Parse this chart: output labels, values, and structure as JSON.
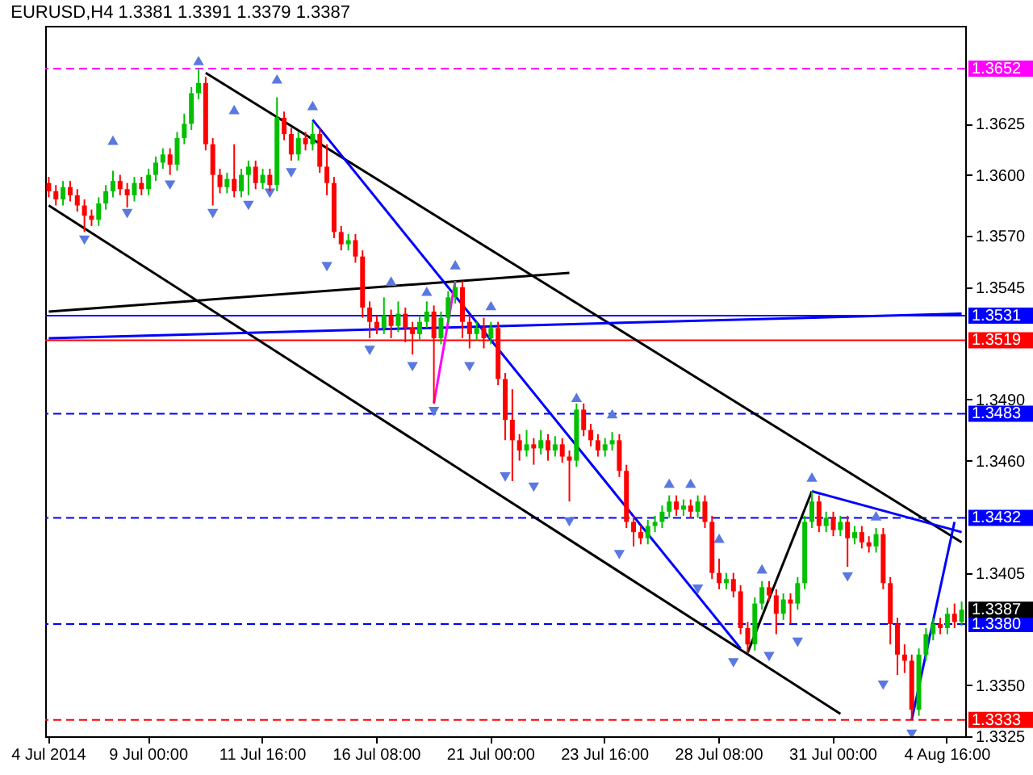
{
  "chart_data": {
    "type": "candlestick",
    "title": "EURUSD,H4  1.3381 1.3391 1.3379 1.3387",
    "categories": [
      "4 Jul 2014",
      null,
      null,
      null,
      null,
      null,
      null,
      null,
      null,
      null,
      null,
      null,
      null,
      null,
      "9 Jul 00:00",
      null,
      null,
      null,
      null,
      null,
      null,
      null,
      null,
      null,
      null,
      null,
      null,
      null,
      null,
      null,
      "11 Jul 16:00",
      null,
      null,
      null,
      null,
      null,
      null,
      null,
      null,
      null,
      null,
      null,
      null,
      null,
      null,
      null,
      "16 Jul 08:00",
      null,
      null,
      null,
      null,
      null,
      null,
      null,
      null,
      null,
      null,
      null,
      null,
      null,
      null,
      null,
      "21 Jul 00:00",
      null,
      null,
      null,
      null,
      null,
      null,
      null,
      null,
      null,
      null,
      null,
      null,
      null,
      null,
      null,
      "23 Jul 16:00",
      null,
      null,
      null,
      null,
      null,
      null,
      null,
      null,
      null,
      null,
      null,
      null,
      null,
      null,
      null,
      "28 Jul 08:00",
      null,
      null,
      null,
      null,
      null,
      null,
      null,
      null,
      null,
      null,
      null,
      null,
      null,
      null,
      null,
      "31 Jul 00:00",
      null,
      null,
      null,
      null,
      null,
      null,
      null,
      null,
      null,
      null,
      null,
      null,
      null,
      null,
      null,
      "4 Aug 16:00",
      null,
      null
    ],
    "ohlc": [
      [
        1.3596,
        1.3599,
        1.3589,
        1.3592
      ],
      [
        1.3592,
        1.3595,
        1.3585,
        1.3588
      ],
      [
        1.3588,
        1.3597,
        1.3585,
        1.3594
      ],
      [
        1.3594,
        1.3597,
        1.3587,
        1.359
      ],
      [
        1.359,
        1.3593,
        1.3582,
        1.3585
      ],
      [
        1.3585,
        1.3588,
        1.3572,
        1.358
      ],
      [
        1.358,
        1.3583,
        1.3575,
        1.3578
      ],
      [
        1.3578,
        1.3589,
        1.3575,
        1.3586
      ],
      [
        1.3586,
        1.3595,
        1.3583,
        1.3592
      ],
      [
        1.3592,
        1.3602,
        1.3589,
        1.3597
      ],
      [
        1.3597,
        1.36,
        1.359,
        1.3593
      ],
      [
        1.3593,
        1.3596,
        1.3584,
        1.359
      ],
      [
        1.359,
        1.3599,
        1.3587,
        1.3596
      ],
      [
        1.3596,
        1.3599,
        1.359,
        1.3593
      ],
      [
        1.3593,
        1.3603,
        1.359,
        1.36
      ],
      [
        1.36,
        1.3609,
        1.3597,
        1.3606
      ],
      [
        1.3606,
        1.3613,
        1.3603,
        1.361
      ],
      [
        1.361,
        1.3613,
        1.36,
        1.3605
      ],
      [
        1.3605,
        1.3621,
        1.3602,
        1.3618
      ],
      [
        1.3618,
        1.363,
        1.3615,
        1.3625
      ],
      [
        1.3625,
        1.3643,
        1.3622,
        1.364
      ],
      [
        1.364,
        1.3652,
        1.3637,
        1.3645
      ],
      [
        1.3645,
        1.3648,
        1.3612,
        1.3615
      ],
      [
        1.3615,
        1.3618,
        1.3585,
        1.36
      ],
      [
        1.36,
        1.3603,
        1.3591,
        1.3594
      ],
      [
        1.3594,
        1.3601,
        1.3591,
        1.3598
      ],
      [
        1.3598,
        1.3615,
        1.3589,
        1.3592
      ],
      [
        1.3592,
        1.3603,
        1.3589,
        1.36
      ],
      [
        1.36,
        1.3607,
        1.359,
        1.3604
      ],
      [
        1.3604,
        1.3607,
        1.3593,
        1.3596
      ],
      [
        1.3596,
        1.3603,
        1.3593,
        1.36
      ],
      [
        1.36,
        1.3603,
        1.3592,
        1.3595
      ],
      [
        1.3595,
        1.3638,
        1.3592,
        1.3628
      ],
      [
        1.3628,
        1.3631,
        1.3617,
        1.362
      ],
      [
        1.362,
        1.3623,
        1.3607,
        1.361
      ],
      [
        1.361,
        1.3621,
        1.3607,
        1.3618
      ],
      [
        1.3618,
        1.3621,
        1.3612,
        1.3615
      ],
      [
        1.3615,
        1.3626,
        1.3612,
        1.362
      ],
      [
        1.362,
        1.3623,
        1.3601,
        1.3604
      ],
      [
        1.3604,
        1.3615,
        1.359,
        1.3596
      ],
      [
        1.3596,
        1.3599,
        1.3569,
        1.3572
      ],
      [
        1.3572,
        1.3575,
        1.3563,
        1.3566
      ],
      [
        1.3566,
        1.3571,
        1.3563,
        1.3568
      ],
      [
        1.3568,
        1.3571,
        1.3557,
        1.356
      ],
      [
        1.356,
        1.3563,
        1.353,
        1.3535
      ],
      [
        1.3535,
        1.3538,
        1.352,
        1.3528
      ],
      [
        1.3528,
        1.3531,
        1.3522,
        1.3525
      ],
      [
        1.3525,
        1.354,
        1.3522,
        1.3531
      ],
      [
        1.3531,
        1.3534,
        1.352,
        1.3526
      ],
      [
        1.3526,
        1.3538,
        1.3523,
        1.3532
      ],
      [
        1.3532,
        1.3535,
        1.3518,
        1.3525
      ],
      [
        1.3525,
        1.3528,
        1.3512,
        1.3522
      ],
      [
        1.3522,
        1.3531,
        1.3519,
        1.3528
      ],
      [
        1.3528,
        1.3538,
        1.3525,
        1.3533
      ],
      [
        1.3533,
        1.3536,
        1.3488,
        1.352
      ],
      [
        1.352,
        1.3533,
        1.3517,
        1.353
      ],
      [
        1.353,
        1.3543,
        1.3527,
        1.354
      ],
      [
        1.354,
        1.3548,
        1.3537,
        1.3545
      ],
      [
        1.3545,
        1.3548,
        1.352,
        1.3528
      ],
      [
        1.3528,
        1.3531,
        1.3515,
        1.3522
      ],
      [
        1.3522,
        1.3528,
        1.3519,
        1.3525
      ],
      [
        1.3525,
        1.353,
        1.3515,
        1.352
      ],
      [
        1.352,
        1.3528,
        1.3517,
        1.3525
      ],
      [
        1.3525,
        1.3528,
        1.3497,
        1.35
      ],
      [
        1.35,
        1.3503,
        1.347,
        1.348
      ],
      [
        1.348,
        1.3495,
        1.345,
        1.347
      ],
      [
        1.347,
        1.3473,
        1.346,
        1.3465
      ],
      [
        1.3465,
        1.3475,
        1.3462,
        1.3468
      ],
      [
        1.3468,
        1.3471,
        1.3458,
        1.3466
      ],
      [
        1.3466,
        1.3475,
        1.3463,
        1.347
      ],
      [
        1.347,
        1.3473,
        1.346,
        1.3465
      ],
      [
        1.3465,
        1.3472,
        1.3462,
        1.3468
      ],
      [
        1.3468,
        1.3471,
        1.3459,
        1.3462
      ],
      [
        1.3462,
        1.3465,
        1.344,
        1.346
      ],
      [
        1.346,
        1.3488,
        1.3457,
        1.3485
      ],
      [
        1.3485,
        1.3488,
        1.3472,
        1.3475
      ],
      [
        1.3475,
        1.3478,
        1.3467,
        1.347
      ],
      [
        1.347,
        1.3473,
        1.3462,
        1.3465
      ],
      [
        1.3465,
        1.3471,
        1.3462,
        1.3468
      ],
      [
        1.3468,
        1.3474,
        1.3465,
        1.347
      ],
      [
        1.347,
        1.3473,
        1.3452,
        1.3455
      ],
      [
        1.3455,
        1.3458,
        1.3427,
        1.343
      ],
      [
        1.343,
        1.3433,
        1.3418,
        1.3425
      ],
      [
        1.3425,
        1.3428,
        1.3419,
        1.3422
      ],
      [
        1.3422,
        1.3431,
        1.3419,
        1.3428
      ],
      [
        1.3428,
        1.3433,
        1.3425,
        1.343
      ],
      [
        1.343,
        1.3438,
        1.3427,
        1.3435
      ],
      [
        1.3435,
        1.3443,
        1.3432,
        1.344
      ],
      [
        1.344,
        1.3443,
        1.3433,
        1.3436
      ],
      [
        1.3436,
        1.3441,
        1.3433,
        1.3438
      ],
      [
        1.3438,
        1.3441,
        1.3432,
        1.3435
      ],
      [
        1.3435,
        1.3443,
        1.3432,
        1.344
      ],
      [
        1.344,
        1.3443,
        1.3427,
        1.343
      ],
      [
        1.343,
        1.3433,
        1.3402,
        1.3405
      ],
      [
        1.3405,
        1.3412,
        1.3397,
        1.34
      ],
      [
        1.34,
        1.3405,
        1.3397,
        1.3402
      ],
      [
        1.3402,
        1.3405,
        1.3393,
        1.3396
      ],
      [
        1.3396,
        1.3399,
        1.3375,
        1.3378
      ],
      [
        1.3378,
        1.3381,
        1.3366,
        1.337
      ],
      [
        1.337,
        1.3393,
        1.3367,
        1.339
      ],
      [
        1.339,
        1.3401,
        1.3387,
        1.3398
      ],
      [
        1.3398,
        1.3401,
        1.3391,
        1.3394
      ],
      [
        1.3394,
        1.3397,
        1.3375,
        1.3385
      ],
      [
        1.3385,
        1.3395,
        1.3382,
        1.3392
      ],
      [
        1.3392,
        1.3395,
        1.338,
        1.339
      ],
      [
        1.339,
        1.3403,
        1.3387,
        1.34
      ],
      [
        1.34,
        1.3433,
        1.3397,
        1.343
      ],
      [
        1.343,
        1.3445,
        1.3427,
        1.344
      ],
      [
        1.344,
        1.3443,
        1.3425,
        1.3428
      ],
      [
        1.3428,
        1.3435,
        1.3425,
        1.3432
      ],
      [
        1.3432,
        1.3435,
        1.3423,
        1.3426
      ],
      [
        1.3426,
        1.3433,
        1.3423,
        1.343
      ],
      [
        1.343,
        1.3433,
        1.3408,
        1.3422
      ],
      [
        1.3422,
        1.3428,
        1.3419,
        1.3425
      ],
      [
        1.3425,
        1.3428,
        1.3417,
        1.342
      ],
      [
        1.342,
        1.3423,
        1.3415,
        1.3418
      ],
      [
        1.3418,
        1.3427,
        1.3415,
        1.3424
      ],
      [
        1.3424,
        1.3427,
        1.3397,
        1.34
      ],
      [
        1.34,
        1.3403,
        1.337,
        1.338
      ],
      [
        1.338,
        1.3383,
        1.3355,
        1.3365
      ],
      [
        1.3365,
        1.337,
        1.3356,
        1.3362
      ],
      [
        1.3362,
        1.3365,
        1.3333,
        1.3338
      ],
      [
        1.3338,
        1.3368,
        1.3335,
        1.3365
      ],
      [
        1.3365,
        1.3378,
        1.3362,
        1.3375
      ],
      [
        1.3375,
        1.3383,
        1.3372,
        1.338
      ],
      [
        1.338,
        1.3383,
        1.3375,
        1.3378
      ],
      [
        1.3378,
        1.3388,
        1.3375,
        1.3385
      ],
      [
        1.3385,
        1.339,
        1.3378,
        1.3381
      ],
      [
        1.3381,
        1.3391,
        1.3379,
        1.3387
      ]
    ],
    "series": [
      {
        "type": "line",
        "color": "#000000",
        "values": [
          null,
          null,
          null,
          null,
          null,
          null,
          null,
          null,
          null,
          null,
          null,
          null,
          null,
          null,
          null,
          null,
          null,
          null,
          null,
          null,
          null,
          null,
          1.365,
          null,
          null,
          null,
          null,
          null,
          null,
          null,
          null,
          null,
          null,
          null,
          null,
          null,
          null,
          null,
          null,
          null,
          null,
          null,
          null,
          null,
          null,
          null,
          null,
          null,
          null,
          null,
          null,
          null,
          null,
          null,
          null,
          null,
          null,
          null,
          null,
          null,
          null,
          null,
          null,
          null,
          null,
          null,
          null,
          null,
          null,
          null,
          null,
          null,
          null,
          null,
          null,
          null,
          null,
          null,
          null,
          null,
          null,
          null,
          null,
          null,
          null,
          null,
          null,
          null,
          null,
          null,
          null,
          null,
          null,
          null,
          null,
          null,
          null,
          null,
          null,
          null,
          null,
          null,
          null,
          null,
          null,
          null,
          null,
          null,
          null,
          null,
          null,
          null,
          null,
          null,
          null,
          null,
          null,
          null,
          null,
          null,
          null,
          null,
          null,
          null,
          null,
          null,
          null,
          null,
          1.342
        ]
      },
      {
        "type": "line",
        "color": "#000000",
        "values": [
          1.3585,
          null,
          null,
          null,
          null,
          null,
          null,
          null,
          null,
          null,
          null,
          null,
          null,
          null,
          null,
          null,
          null,
          null,
          null,
          null,
          null,
          null,
          null,
          null,
          null,
          null,
          null,
          null,
          null,
          null,
          null,
          null,
          null,
          null,
          null,
          null,
          null,
          null,
          null,
          null,
          null,
          null,
          null,
          null,
          null,
          null,
          null,
          null,
          null,
          null,
          null,
          null,
          null,
          null,
          null,
          null,
          null,
          null,
          null,
          null,
          null,
          null,
          null,
          null,
          null,
          null,
          null,
          null,
          null,
          null,
          null,
          null,
          null,
          null,
          null,
          null,
          null,
          null,
          null,
          null,
          null,
          null,
          null,
          null,
          null,
          null,
          null,
          null,
          null,
          null,
          null,
          null,
          null,
          null,
          null,
          null,
          null,
          null,
          null,
          null,
          null,
          null,
          null,
          null,
          null,
          null,
          null,
          null,
          null,
          null,
          null,
          1.3336,
          null,
          null,
          null,
          null,
          null,
          null,
          null,
          null,
          null,
          null,
          null,
          null,
          null,
          null,
          null,
          null,
          null
        ]
      },
      {
        "type": "line",
        "color": "#000000",
        "values": [
          1.3533,
          null,
          null,
          null,
          null,
          null,
          null,
          null,
          null,
          null,
          null,
          null,
          null,
          null,
          null,
          null,
          null,
          null,
          null,
          null,
          null,
          null,
          null,
          null,
          null,
          null,
          null,
          null,
          null,
          null,
          null,
          null,
          null,
          null,
          null,
          null,
          null,
          null,
          null,
          null,
          null,
          null,
          null,
          null,
          null,
          null,
          null,
          null,
          null,
          null,
          null,
          null,
          null,
          null,
          null,
          null,
          null,
          null,
          null,
          null,
          null,
          null,
          null,
          null,
          null,
          null,
          null,
          null,
          null,
          null,
          null,
          null,
          null,
          1.3552,
          null,
          null,
          null,
          null,
          null,
          null,
          null,
          null,
          null,
          null,
          null,
          null,
          null,
          null,
          null,
          null,
          null,
          null,
          null,
          null,
          null,
          null,
          null,
          null,
          null,
          null,
          null,
          null,
          null,
          null,
          null,
          null,
          null,
          null,
          null,
          null,
          null,
          null,
          null,
          null,
          null,
          null,
          null,
          null,
          null,
          null,
          null,
          null,
          null,
          null,
          null,
          null,
          null,
          null,
          null
        ]
      },
      {
        "type": "line",
        "color": "#0000ff",
        "values": [
          1.352,
          null,
          null,
          null,
          null,
          null,
          null,
          null,
          null,
          null,
          null,
          null,
          null,
          null,
          null,
          null,
          null,
          null,
          null,
          null,
          null,
          null,
          null,
          null,
          null,
          null,
          null,
          null,
          null,
          null,
          null,
          null,
          null,
          null,
          null,
          null,
          null,
          null,
          null,
          null,
          null,
          null,
          null,
          null,
          null,
          null,
          null,
          null,
          null,
          null,
          null,
          null,
          null,
          null,
          null,
          null,
          null,
          null,
          null,
          null,
          null,
          null,
          null,
          null,
          null,
          null,
          null,
          null,
          null,
          null,
          null,
          null,
          null,
          null,
          null,
          null,
          null,
          null,
          null,
          null,
          null,
          null,
          null,
          null,
          null,
          null,
          null,
          null,
          null,
          null,
          null,
          null,
          null,
          null,
          null,
          null,
          null,
          null,
          null,
          null,
          null,
          null,
          null,
          null,
          null,
          null,
          null,
          null,
          null,
          null,
          null,
          null,
          null,
          null,
          null,
          null,
          null,
          null,
          null,
          null,
          null,
          null,
          null,
          null,
          null,
          null,
          null,
          null,
          1.3532
        ]
      },
      {
        "type": "line",
        "color": "#0000ff",
        "values": [
          null,
          null,
          null,
          null,
          null,
          null,
          null,
          null,
          null,
          null,
          null,
          null,
          null,
          null,
          null,
          null,
          null,
          null,
          null,
          null,
          null,
          null,
          null,
          null,
          null,
          null,
          null,
          null,
          null,
          null,
          null,
          null,
          null,
          null,
          null,
          null,
          null,
          1.3627,
          null,
          null,
          null,
          null,
          null,
          null,
          null,
          null,
          null,
          null,
          null,
          null,
          null,
          null,
          null,
          null,
          null,
          null,
          null,
          null,
          null,
          null,
          null,
          null,
          null,
          null,
          null,
          null,
          null,
          null,
          null,
          null,
          null,
          null,
          null,
          null,
          null,
          null,
          null,
          null,
          null,
          null,
          null,
          null,
          null,
          null,
          null,
          null,
          null,
          null,
          null,
          null,
          null,
          null,
          null,
          null,
          null,
          null,
          null,
          1.3368,
          null,
          null,
          null,
          null,
          null,
          null,
          null,
          null,
          null,
          null,
          null,
          null,
          null,
          null,
          null,
          null,
          null,
          null,
          null,
          null,
          null,
          null,
          null,
          null,
          null,
          null,
          null,
          null,
          null,
          null,
          null
        ]
      },
      {
        "type": "line",
        "color": "#0000ff",
        "values": [
          null,
          null,
          null,
          null,
          null,
          null,
          null,
          null,
          null,
          null,
          null,
          null,
          null,
          null,
          null,
          null,
          null,
          null,
          null,
          null,
          null,
          null,
          null,
          null,
          null,
          null,
          null,
          null,
          null,
          null,
          null,
          null,
          null,
          null,
          null,
          null,
          null,
          null,
          null,
          null,
          null,
          null,
          null,
          null,
          null,
          null,
          null,
          null,
          null,
          null,
          null,
          null,
          null,
          null,
          null,
          null,
          null,
          null,
          null,
          null,
          null,
          null,
          null,
          null,
          null,
          null,
          null,
          null,
          null,
          null,
          null,
          null,
          null,
          null,
          null,
          null,
          null,
          null,
          null,
          null,
          null,
          null,
          null,
          null,
          null,
          null,
          null,
          null,
          null,
          null,
          null,
          null,
          null,
          null,
          null,
          null,
          null,
          null,
          null,
          null,
          null,
          null,
          null,
          null,
          null,
          null,
          null,
          1.3445,
          null,
          null,
          null,
          null,
          null,
          null,
          null,
          null,
          null,
          null,
          null,
          null,
          null,
          null,
          null,
          null,
          null,
          null,
          null,
          null,
          1.3425
        ]
      },
      {
        "type": "line",
        "color": "#ff00ff",
        "values": [
          null,
          null,
          null,
          null,
          null,
          null,
          null,
          null,
          null,
          null,
          null,
          null,
          null,
          null,
          null,
          null,
          null,
          null,
          null,
          null,
          null,
          null,
          null,
          null,
          null,
          null,
          null,
          null,
          null,
          null,
          null,
          null,
          null,
          null,
          null,
          null,
          null,
          null,
          null,
          null,
          null,
          null,
          null,
          null,
          null,
          null,
          null,
          null,
          null,
          null,
          null,
          null,
          null,
          null,
          1.3488,
          null,
          null,
          1.3548,
          null,
          null,
          null,
          null,
          null,
          null,
          null,
          null,
          null,
          null,
          null,
          null,
          null,
          null,
          null,
          null,
          null,
          null,
          null,
          null,
          null,
          null,
          null,
          null,
          null,
          null,
          null,
          null,
          null,
          null,
          null,
          null,
          null,
          null,
          null,
          null,
          null,
          null,
          null,
          null,
          null,
          null,
          null,
          null,
          null,
          null,
          null,
          null,
          null,
          null,
          null,
          null,
          null,
          null,
          null,
          null,
          null,
          null,
          null,
          null,
          null,
          null,
          null,
          null,
          null,
          null,
          null,
          null,
          null,
          null,
          null
        ]
      },
      {
        "type": "line",
        "color": "#000000",
        "values": [
          null,
          null,
          null,
          null,
          null,
          null,
          null,
          null,
          null,
          null,
          null,
          null,
          null,
          null,
          null,
          null,
          null,
          null,
          null,
          null,
          null,
          null,
          null,
          null,
          null,
          null,
          null,
          null,
          null,
          null,
          null,
          null,
          null,
          null,
          null,
          null,
          null,
          null,
          null,
          null,
          null,
          null,
          null,
          null,
          null,
          null,
          null,
          null,
          null,
          null,
          null,
          null,
          null,
          null,
          null,
          null,
          null,
          null,
          null,
          null,
          null,
          null,
          null,
          null,
          null,
          null,
          null,
          null,
          null,
          null,
          null,
          null,
          null,
          null,
          null,
          null,
          null,
          null,
          null,
          null,
          null,
          null,
          null,
          null,
          null,
          null,
          null,
          null,
          null,
          null,
          null,
          null,
          null,
          null,
          null,
          null,
          null,
          null,
          1.3366,
          null,
          null,
          null,
          null,
          null,
          null,
          null,
          null,
          1.3445,
          null,
          null,
          null,
          null,
          null,
          null,
          null,
          null,
          null,
          null,
          null,
          null,
          null,
          null,
          null,
          null,
          null,
          null,
          null,
          null,
          null
        ]
      },
      {
        "type": "line",
        "color": "#0000ff",
        "values": [
          null,
          null,
          null,
          null,
          null,
          null,
          null,
          null,
          null,
          null,
          null,
          null,
          null,
          null,
          null,
          null,
          null,
          null,
          null,
          null,
          null,
          null,
          null,
          null,
          null,
          null,
          null,
          null,
          null,
          null,
          null,
          null,
          null,
          null,
          null,
          null,
          null,
          null,
          null,
          null,
          null,
          null,
          null,
          null,
          null,
          null,
          null,
          null,
          null,
          null,
          null,
          null,
          null,
          null,
          null,
          null,
          null,
          null,
          null,
          null,
          null,
          null,
          null,
          null,
          null,
          null,
          null,
          null,
          null,
          null,
          null,
          null,
          null,
          null,
          null,
          null,
          null,
          null,
          null,
          null,
          null,
          null,
          null,
          null,
          null,
          null,
          null,
          null,
          null,
          null,
          null,
          null,
          null,
          null,
          null,
          null,
          null,
          null,
          null,
          null,
          null,
          null,
          null,
          null,
          null,
          null,
          null,
          null,
          null,
          null,
          null,
          null,
          null,
          null,
          null,
          null,
          null,
          null,
          null,
          null,
          null,
          1.3333,
          null,
          null,
          null,
          null,
          null,
          1.343,
          null
        ]
      },
      {
        "type": "scatter",
        "marker": "triangle",
        "color": "#5a78e0",
        "values": [
          null,
          null,
          null,
          null,
          null,
          null,
          null,
          null,
          null,
          1.3617,
          null,
          null,
          null,
          null,
          null,
          null,
          null,
          null,
          null,
          null,
          null,
          1.3656,
          null,
          null,
          null,
          null,
          1.3632,
          null,
          null,
          null,
          null,
          null,
          1.3647,
          null,
          null,
          null,
          null,
          1.3634,
          null,
          null,
          null,
          null,
          null,
          null,
          null,
          null,
          null,
          null,
          1.3548,
          null,
          null,
          null,
          null,
          1.3543,
          null,
          null,
          null,
          1.3556,
          null,
          null,
          null,
          null,
          1.3536,
          null,
          null,
          null,
          null,
          null,
          null,
          null,
          null,
          null,
          null,
          null,
          1.3491,
          null,
          null,
          null,
          null,
          1.3483,
          null,
          null,
          null,
          null,
          null,
          null,
          null,
          1.3449,
          null,
          null,
          1.3449,
          null,
          null,
          null,
          1.3422,
          null,
          null,
          null,
          null,
          null,
          1.3407,
          null,
          null,
          null,
          null,
          null,
          null,
          1.3452,
          null,
          null,
          null,
          null,
          null,
          null,
          null,
          null,
          1.3433,
          null,
          null,
          null,
          null,
          null,
          null,
          null,
          null,
          null,
          null,
          null,
          null
        ]
      },
      {
        "type": "scatter",
        "marker": "triangle",
        "color": "#5a78e0",
        "values": [
          null,
          null,
          null,
          null,
          null,
          1.3568,
          null,
          null,
          null,
          null,
          null,
          1.3581,
          null,
          null,
          null,
          null,
          null,
          1.3595,
          null,
          null,
          null,
          null,
          null,
          1.3581,
          null,
          null,
          null,
          null,
          1.3585,
          null,
          null,
          1.3591,
          null,
          null,
          1.3601,
          null,
          null,
          null,
          null,
          1.3555,
          null,
          null,
          null,
          null,
          null,
          1.3514,
          null,
          null,
          null,
          null,
          null,
          1.3506,
          null,
          null,
          1.3484,
          null,
          null,
          null,
          null,
          1.3506,
          null,
          null,
          null,
          null,
          1.3452,
          null,
          null,
          null,
          1.3447,
          null,
          null,
          null,
          null,
          1.343,
          null,
          null,
          null,
          null,
          null,
          null,
          1.3414,
          null,
          null,
          null,
          null,
          null,
          null,
          null,
          null,
          null,
          null,
          1.3397,
          null,
          null,
          null,
          null,
          1.3361,
          null,
          null,
          null,
          null,
          1.3364,
          null,
          null,
          null,
          1.3371,
          null,
          null,
          null,
          null,
          null,
          null,
          1.3403,
          null,
          null,
          null,
          null,
          1.335,
          null,
          null,
          null,
          1.3326,
          null,
          null,
          null,
          null,
          null,
          null,
          null
        ]
      }
    ],
    "ylim": [
      1.3325,
      1.3673
    ],
    "yticks": [
      1.3625,
      {
        "value": 1.36,
        "label": "1.3600"
      },
      {
        "value": 1.357,
        "label": "1.3570"
      },
      1.3545,
      {
        "value": 1.349,
        "label": "1.3490"
      },
      {
        "value": 1.346,
        "label": "1.3460"
      },
      1.3405,
      {
        "value": 1.335,
        "label": "1.3350"
      },
      1.3325
    ],
    "ref_lines": [
      {
        "axis": "y",
        "value": 1.3652,
        "label": "1.3652",
        "color": "#ff00ff",
        "line_style": "dashed"
      },
      {
        "axis": "y",
        "value": 1.3531,
        "label": "1.3531",
        "color": "#0000ff",
        "line_style": "solid"
      },
      {
        "axis": "y",
        "value": 1.3519,
        "label": "1.3519",
        "color": "#ff0000",
        "line_style": "solid"
      },
      {
        "axis": "y",
        "value": 1.3483,
        "label": "1.3483",
        "color": "#0000ff",
        "line_style": "dashed"
      },
      {
        "axis": "y",
        "value": 1.3432,
        "label": "1.3432",
        "color": "#0000ff",
        "line_style": "dashed"
      },
      {
        "axis": "y",
        "value": 1.338,
        "label": "1.3380",
        "color": "#0000ff",
        "line_style": "dashed"
      },
      {
        "axis": "y",
        "value": 1.3333,
        "label": "1.3333",
        "color": "#ff0000",
        "line_style": "dashed"
      }
    ],
    "annotations": [
      "1.3387"
    ]
  }
}
